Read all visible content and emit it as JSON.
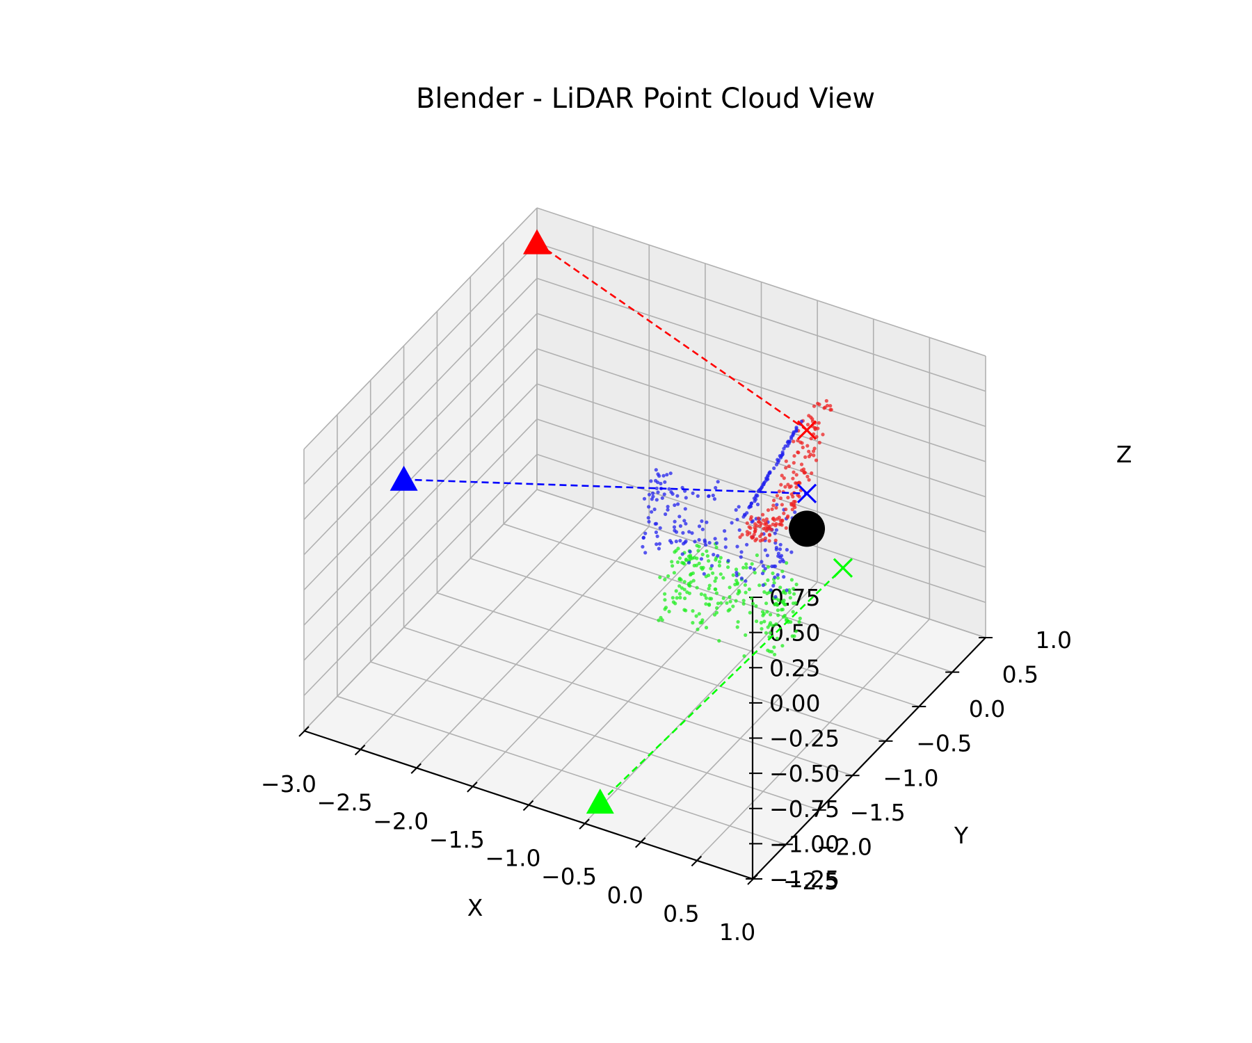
{
  "chart_data": {
    "type": "scatter",
    "projection": "3d",
    "title": "Blender - LiDAR Point Cloud View",
    "xlabel": "X",
    "ylabel": "Y",
    "zlabel": "Z",
    "xlim": [
      -3.0,
      1.0
    ],
    "ylim": [
      -2.5,
      1.0
    ],
    "zlim": [
      -1.25,
      0.75
    ],
    "x_ticks": [
      "−3.0",
      "−2.5",
      "−2.0",
      "−1.5",
      "−1.0",
      "−0.5",
      "0.0",
      "0.5",
      "1.0"
    ],
    "y_ticks": [
      "−2.5",
      "−2.0",
      "−1.5",
      "−1.0",
      "−0.5",
      "0.0",
      "0.5",
      "1.0"
    ],
    "z_ticks": [
      "−1.25",
      "−1.00",
      "−0.75",
      "−0.50",
      "−0.25",
      "0.00",
      "0.25",
      "0.50",
      "0.75"
    ],
    "x_tick_values": [
      -3.0,
      -2.5,
      -2.0,
      -1.5,
      -1.0,
      -0.5,
      0.0,
      0.5,
      1.0
    ],
    "y_tick_values": [
      -2.5,
      -2.0,
      -1.5,
      -1.0,
      -0.5,
      0.0,
      0.5,
      1.0
    ],
    "z_tick_values": [
      -1.25,
      -1.0,
      -0.75,
      -0.5,
      -0.25,
      0.0,
      0.25,
      0.5,
      0.75
    ],
    "grid": true,
    "object": {
      "shape": "sphere",
      "x": 0.0,
      "y": 0.0,
      "z": -0.25,
      "color": "#000000"
    },
    "sensors": [
      {
        "color": "#ff0000",
        "position": [
          -3.0,
          1.0,
          0.5
        ],
        "target": [
          0.0,
          0.0,
          0.45
        ]
      },
      {
        "color": "#0000ff",
        "position": [
          -3.0,
          -1.0,
          -0.2
        ],
        "target": [
          0.0,
          0.0,
          0.0
        ]
      },
      {
        "color": "#00ff00",
        "position": [
          -0.3,
          -2.6,
          -1.0
        ],
        "target": [
          0.5,
          -0.3,
          -0.25
        ]
      }
    ]
  }
}
